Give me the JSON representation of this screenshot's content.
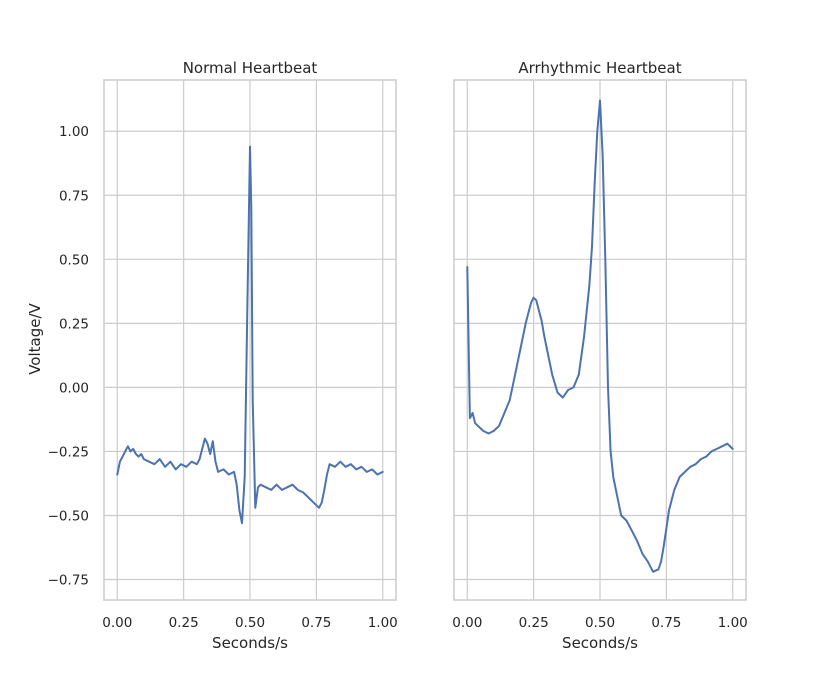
{
  "chart_data": [
    {
      "type": "line",
      "title": "Normal Heartbeat",
      "xlabel": "Seconds/s",
      "ylabel": "Voltage/V",
      "xlim": [
        -0.05,
        1.05
      ],
      "ylim": [
        -0.83,
        1.2
      ],
      "xticks": [
        "0.00",
        "0.25",
        "0.50",
        "0.75",
        "1.00"
      ],
      "yticks": [
        "-0.75",
        "-0.50",
        "-0.25",
        "0.00",
        "0.25",
        "0.50",
        "0.75",
        "1.00"
      ],
      "grid": true,
      "color": "#4c72b0",
      "series": [
        {
          "x": [
            0.0,
            0.01,
            0.02,
            0.03,
            0.04,
            0.05,
            0.06,
            0.07,
            0.08,
            0.09,
            0.1,
            0.12,
            0.14,
            0.16,
            0.18,
            0.2,
            0.22,
            0.24,
            0.26,
            0.28,
            0.3,
            0.31,
            0.32,
            0.33,
            0.34,
            0.35,
            0.36,
            0.37,
            0.38,
            0.4,
            0.42,
            0.44,
            0.45,
            0.46,
            0.47,
            0.48,
            0.49,
            0.5,
            0.505,
            0.51,
            0.52,
            0.53,
            0.54,
            0.56,
            0.58,
            0.6,
            0.62,
            0.64,
            0.66,
            0.68,
            0.7,
            0.72,
            0.74,
            0.76,
            0.77,
            0.78,
            0.79,
            0.8,
            0.82,
            0.84,
            0.86,
            0.88,
            0.9,
            0.92,
            0.94,
            0.96,
            0.98,
            1.0
          ],
          "y": [
            -0.34,
            -0.29,
            -0.27,
            -0.25,
            -0.23,
            -0.25,
            -0.24,
            -0.26,
            -0.27,
            -0.26,
            -0.28,
            -0.29,
            -0.3,
            -0.28,
            -0.31,
            -0.29,
            -0.32,
            -0.3,
            -0.31,
            -0.29,
            -0.3,
            -0.28,
            -0.24,
            -0.2,
            -0.22,
            -0.26,
            -0.21,
            -0.29,
            -0.33,
            -0.32,
            -0.34,
            -0.33,
            -0.38,
            -0.48,
            -0.53,
            -0.35,
            0.3,
            0.94,
            0.7,
            -0.05,
            -0.47,
            -0.39,
            -0.38,
            -0.39,
            -0.4,
            -0.38,
            -0.4,
            -0.39,
            -0.38,
            -0.4,
            -0.41,
            -0.43,
            -0.45,
            -0.47,
            -0.45,
            -0.4,
            -0.34,
            -0.3,
            -0.31,
            -0.29,
            -0.31,
            -0.3,
            -0.32,
            -0.31,
            -0.33,
            -0.32,
            -0.34,
            -0.33
          ]
        }
      ]
    },
    {
      "type": "line",
      "title": "Arrhythmic Heartbeat",
      "xlabel": "Seconds/s",
      "ylabel": "",
      "xlim": [
        -0.05,
        1.05
      ],
      "ylim": [
        -0.83,
        1.2
      ],
      "xticks": [
        "0.00",
        "0.25",
        "0.50",
        "0.75",
        "1.00"
      ],
      "yticks": [],
      "grid": true,
      "color": "#4c72b0",
      "series": [
        {
          "x": [
            0.0,
            0.01,
            0.02,
            0.03,
            0.04,
            0.06,
            0.08,
            0.1,
            0.12,
            0.14,
            0.16,
            0.18,
            0.2,
            0.22,
            0.24,
            0.25,
            0.26,
            0.27,
            0.28,
            0.29,
            0.3,
            0.32,
            0.34,
            0.36,
            0.38,
            0.4,
            0.42,
            0.44,
            0.46,
            0.47,
            0.48,
            0.49,
            0.5,
            0.51,
            0.52,
            0.53,
            0.54,
            0.55,
            0.56,
            0.58,
            0.6,
            0.62,
            0.64,
            0.66,
            0.68,
            0.7,
            0.72,
            0.73,
            0.74,
            0.75,
            0.76,
            0.78,
            0.8,
            0.82,
            0.84,
            0.86,
            0.88,
            0.9,
            0.92,
            0.94,
            0.96,
            0.98,
            1.0
          ],
          "y": [
            0.47,
            -0.12,
            -0.1,
            -0.14,
            -0.15,
            -0.17,
            -0.18,
            -0.17,
            -0.15,
            -0.1,
            -0.05,
            0.05,
            0.15,
            0.25,
            0.33,
            0.35,
            0.34,
            0.3,
            0.26,
            0.2,
            0.15,
            0.05,
            -0.02,
            -0.04,
            -0.01,
            0.0,
            0.05,
            0.2,
            0.4,
            0.55,
            0.8,
            1.0,
            1.12,
            0.9,
            0.5,
            0.0,
            -0.25,
            -0.35,
            -0.4,
            -0.5,
            -0.52,
            -0.56,
            -0.6,
            -0.65,
            -0.68,
            -0.72,
            -0.71,
            -0.68,
            -0.62,
            -0.55,
            -0.48,
            -0.4,
            -0.35,
            -0.33,
            -0.31,
            -0.3,
            -0.28,
            -0.27,
            -0.25,
            -0.24,
            -0.23,
            -0.22,
            -0.24
          ]
        }
      ]
    }
  ]
}
